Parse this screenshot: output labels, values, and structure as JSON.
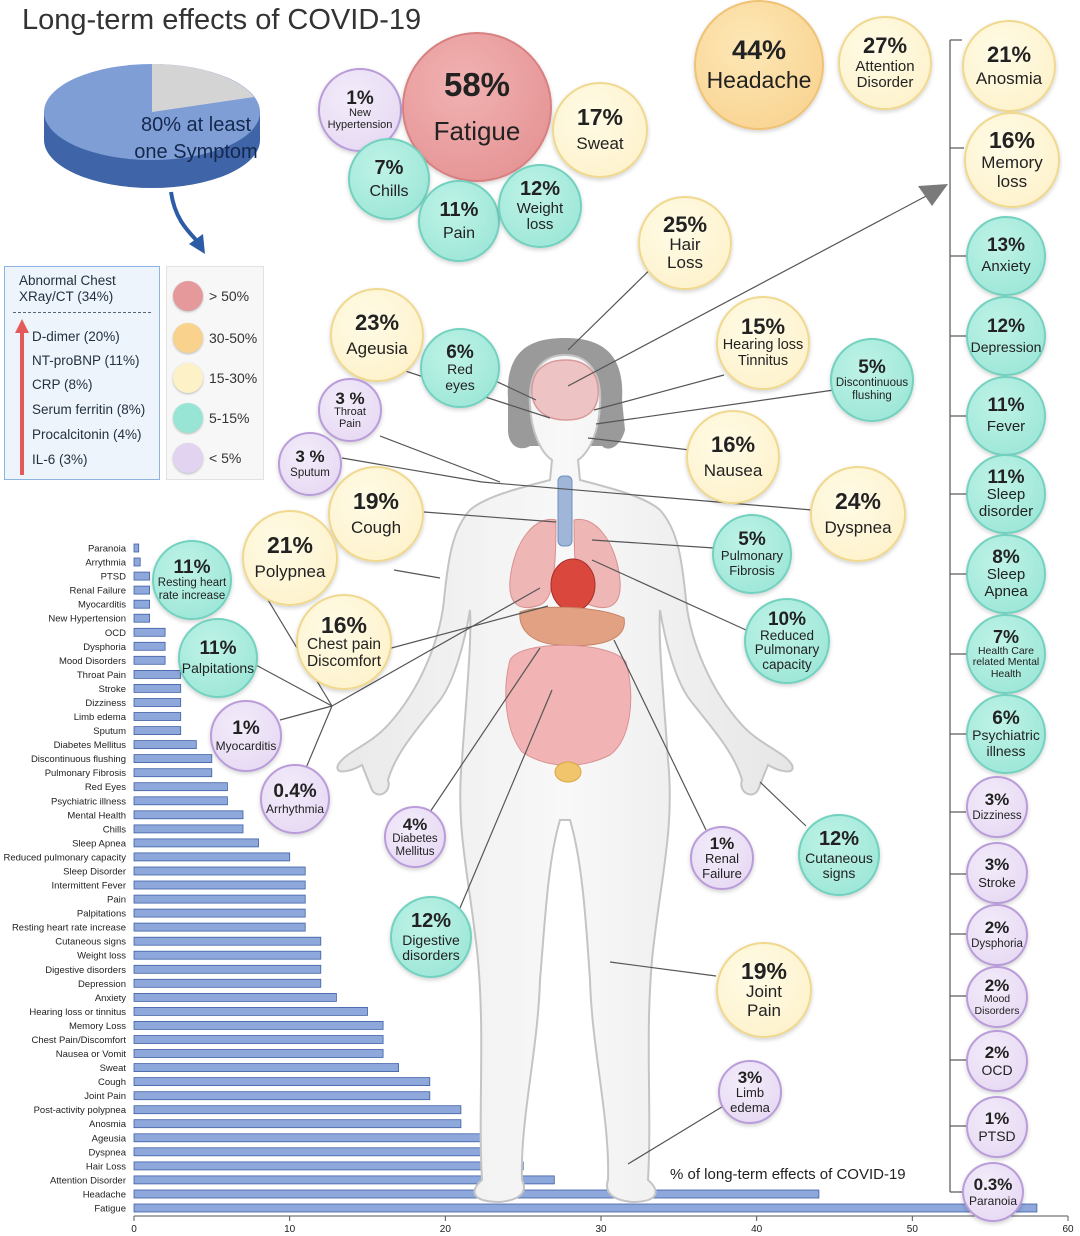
{
  "title": "Long-term effects of COVID-19",
  "pie": {
    "label_line1": "80% at least",
    "label_line2": "one Symptom",
    "value_percent": 80
  },
  "markers": {
    "chest": "Abnormal Chest XRay/CT (34%)",
    "items": [
      "D-dimer (20%)",
      "NT-proBNP (11%)",
      "CRP (8%)",
      "Serum ferritin (8%)",
      "Procalcitonin (4%)",
      "IL-6 (3%)"
    ]
  },
  "legend": [
    {
      "label": "> 50%",
      "color": "#e6999a"
    },
    {
      "label": "30-50%",
      "color": "#f9d38d"
    },
    {
      "label": "15-30%",
      "color": "#fdf1c8"
    },
    {
      "label": "5-15%",
      "color": "#99e5d5"
    },
    {
      "label": "< 5%",
      "color": "#e2d3f1"
    }
  ],
  "colors": {
    "red": "#e38d8e",
    "orange": "#f8d08a",
    "yellow": "#fdf0c6",
    "teal": "#95e4d4",
    "purple": "#e4d5f2",
    "bar": "#8fa8dc",
    "bar_edge": "#3f5fa6"
  },
  "bubbles": {
    "new_hypertension": {
      "pct": "1%",
      "label": "New\nHypertension"
    },
    "fatigue": {
      "pct": "58%",
      "label": "Fatigue"
    },
    "sweat": {
      "pct": "17%",
      "label": "Sweat"
    },
    "chills": {
      "pct": "7%",
      "label": "Chills"
    },
    "pain": {
      "pct": "11%",
      "label": "Pain"
    },
    "weight_loss": {
      "pct": "12%",
      "label": "Weight\nloss"
    },
    "headache": {
      "pct": "44%",
      "label": "Headache"
    },
    "attention": {
      "pct": "27%",
      "label": "Attention\nDisorder"
    },
    "anosmia": {
      "pct": "21%",
      "label": "Anosmia"
    },
    "memory": {
      "pct": "16%",
      "label": "Memory\nloss"
    },
    "anxiety": {
      "pct": "13%",
      "label": "Anxiety"
    },
    "depression": {
      "pct": "12%",
      "label": "Depression"
    },
    "fever": {
      "pct": "11%",
      "label": "Fever"
    },
    "sleep_disorder": {
      "pct": "11%",
      "label": "Sleep\ndisorder"
    },
    "sleep_apnea": {
      "pct": "8%",
      "label": "Sleep\nApnea"
    },
    "mental_health": {
      "pct": "7%",
      "label": "Health Care\nrelated Mental\nHealth"
    },
    "psychiatric": {
      "pct": "6%",
      "label": "Psychiatric\nillness"
    },
    "dizziness": {
      "pct": "3%",
      "label": "Dizziness"
    },
    "stroke": {
      "pct": "3%",
      "label": "Stroke"
    },
    "dysphoria": {
      "pct": "2%",
      "label": "Dysphoria"
    },
    "mood": {
      "pct": "2%",
      "label": "Mood\nDisorders"
    },
    "ocd": {
      "pct": "2%",
      "label": "OCD"
    },
    "ptsd": {
      "pct": "1%",
      "label": "PTSD"
    },
    "paranoia": {
      "pct": "0.3%",
      "label": "Paranoia"
    },
    "hair_loss": {
      "pct": "25%",
      "label": "Hair\nLoss"
    },
    "ageusia": {
      "pct": "23%",
      "label": "Ageusia"
    },
    "red_eyes": {
      "pct": "6%",
      "label": "Red\neyes"
    },
    "hearing": {
      "pct": "15%",
      "label": "Hearing loss\nTinnitus"
    },
    "flushing": {
      "pct": "5%",
      "label": "Discontinuous\nflushing"
    },
    "throat": {
      "pct": "3 %",
      "label": "Throat\nPain"
    },
    "sputum": {
      "pct": "3 %",
      "label": "Sputum"
    },
    "nausea": {
      "pct": "16%",
      "label": "Nausea"
    },
    "cough": {
      "pct": "19%",
      "label": "Cough"
    },
    "dyspnea": {
      "pct": "24%",
      "label": "Dyspnea"
    },
    "resting_hr": {
      "pct": "11%",
      "label": "Resting heart\nrate increase"
    },
    "polypnea": {
      "pct": "21%",
      "label": "Polypnea"
    },
    "pulm_fibrosis": {
      "pct": "5%",
      "label": "Pulmonary\nFibrosis"
    },
    "palpitations": {
      "pct": "11%",
      "label": "Palpitations"
    },
    "chest_pain": {
      "pct": "16%",
      "label": "Chest pain\nDiscomfort"
    },
    "reduced_pulm": {
      "pct": "10%",
      "label": "Reduced\nPulmonary\ncapacity"
    },
    "myocarditis": {
      "pct": "1%",
      "label": "Myocarditis"
    },
    "arrhythmia": {
      "pct": "0.4%",
      "label": "Arrhythmia"
    },
    "diabetes": {
      "pct": "4%",
      "label": "Diabetes\nMellitus"
    },
    "renal": {
      "pct": "1%",
      "label": "Renal\nFailure"
    },
    "cutaneous": {
      "pct": "12%",
      "label": "Cutaneous\nsigns"
    },
    "digestive": {
      "pct": "12%",
      "label": "Digestive\ndisorders"
    },
    "joint_pain": {
      "pct": "19%",
      "label": "Joint\nPain"
    },
    "limb_edema": {
      "pct": "3%",
      "label": "Limb\nedema"
    }
  },
  "chart_data": {
    "type": "bar",
    "orientation": "horizontal",
    "title": "",
    "caption": "% of long-term effects of COVID-19",
    "xlabel": "",
    "ylabel": "",
    "xlim": [
      0,
      60
    ],
    "xticks": [
      0,
      10,
      20,
      30,
      40,
      50,
      60
    ],
    "grid": false,
    "categories": [
      "Paranoia",
      "Arrythmia",
      "PTSD",
      "Renal Failure",
      "Myocarditis",
      "New Hypertension",
      "OCD",
      "Dysphoria",
      "Mood Disorders",
      "Throat Pain",
      "Stroke",
      "Dizziness",
      "Limb edema",
      "Sputum",
      "Diabetes Mellitus",
      "Discontinuous flushing",
      "Pulmonary Fibrosis",
      "Red Eyes",
      "Psychiatric illness",
      "Mental Health",
      "Chills",
      "Sleep Apnea",
      "Reduced pulmonary capacity",
      "Sleep Disorder",
      "Intermittent Fever",
      "Pain",
      "Palpitations",
      "Resting heart rate increase",
      "Cutaneous signs",
      "Weight loss",
      "Digestive disorders",
      "Depression",
      "Anxiety",
      "Hearing loss or tinnitus",
      "Memory Loss",
      "Chest Pain/Discomfort",
      "Nausea or Vomit",
      "Sweat",
      "Cough",
      "Joint Pain",
      "Post-activity polypnea",
      "Anosmia",
      "Ageusia",
      "Dyspnea",
      "Hair Loss",
      "Attention Disorder",
      "Headache",
      "Fatigue"
    ],
    "values": [
      0.3,
      0.4,
      1,
      1,
      1,
      1,
      2,
      2,
      2,
      3,
      3,
      3,
      3,
      3,
      4,
      5,
      5,
      6,
      6,
      7,
      7,
      8,
      10,
      11,
      11,
      11,
      11,
      11,
      12,
      12,
      12,
      12,
      13,
      15,
      16,
      16,
      16,
      17,
      19,
      19,
      21,
      21,
      23,
      24,
      25,
      27,
      44,
      58
    ]
  }
}
